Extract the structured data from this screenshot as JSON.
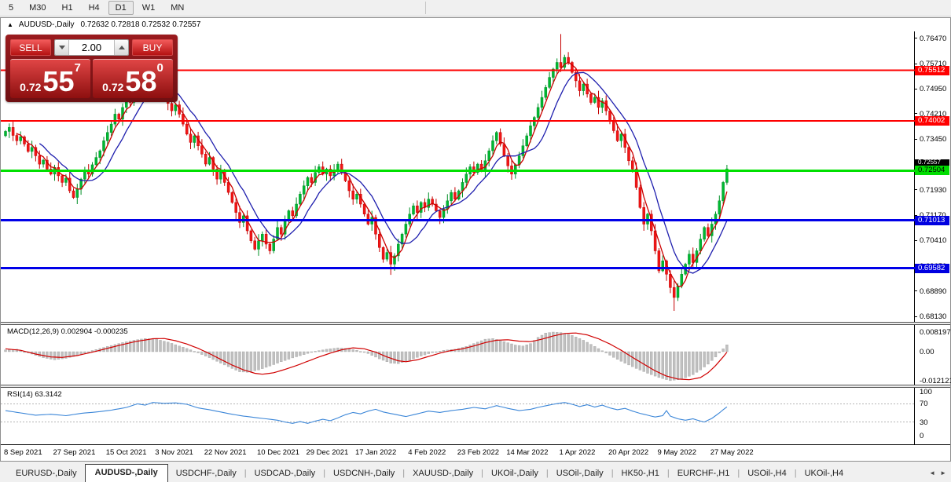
{
  "toolbar": {
    "timeframes": [
      "5",
      "M30",
      "H1",
      "H4",
      "D1",
      "W1",
      "MN"
    ],
    "active": "D1"
  },
  "chart": {
    "symbol_title": "AUDUSD-,Daily",
    "ohlc_text": "0.72632 0.72818 0.72532 0.72557",
    "collapse_icon": "▲"
  },
  "trade_panel": {
    "sell_label": "SELL",
    "buy_label": "BUY",
    "volume": "2.00",
    "sell_prefix": "0.72",
    "sell_big": "55",
    "sell_sup": "7",
    "sell_price": "0.72557",
    "buy_prefix": "0.72",
    "buy_big": "58",
    "buy_sup": "0",
    "buy_price": "0.72580"
  },
  "price_axis": {
    "ticks": [
      "0.76470",
      "0.75710",
      "0.74950",
      "0.74210",
      "0.73450",
      "0.72690",
      "0.71930",
      "0.71170",
      "0.70410",
      "0.69650",
      "0.68890",
      "0.68130"
    ],
    "bid_label": "0.72557",
    "levels": [
      {
        "price": 0.75512,
        "label": "0.75512",
        "bg": "#ff0000",
        "fg": "#ffffff"
      },
      {
        "price": 0.74002,
        "label": "0.74002",
        "bg": "#ff0000",
        "fg": "#ffffff"
      },
      {
        "price": 0.72504,
        "label": "0.72504",
        "bg": "#00dd00",
        "fg": "#000000"
      },
      {
        "price": 0.71013,
        "label": "0.71013",
        "bg": "#0000e0",
        "fg": "#ffffff"
      },
      {
        "price": 0.69582,
        "label": "0.69582",
        "bg": "#0000e0",
        "fg": "#ffffff"
      }
    ]
  },
  "date_axis": {
    "labels": [
      "8 Sep 2021",
      "27 Sep 2021",
      "15 Oct 2021",
      "3 Nov 2021",
      "22 Nov 2021",
      "10 Dec 2021",
      "29 Dec 2021",
      "17 Jan 2022",
      "4 Feb 2022",
      "23 Feb 2022",
      "14 Mar 2022",
      "1 Apr 2022",
      "20 Apr 2022",
      "9 May 2022",
      "27 May 2022"
    ],
    "bar_indices": [
      0,
      13,
      27,
      40,
      53,
      67,
      80,
      93,
      107,
      120,
      133,
      147,
      160,
      173,
      187
    ]
  },
  "macd_panel": {
    "label": "MACD(12,26,9) 0.002904 -0.000235",
    "axis_ticks": [
      0.008197,
      0.0,
      -0.012121
    ],
    "axis_tick_labels": [
      "0.008197",
      "0.00",
      "-0.012121"
    ]
  },
  "rsi_panel": {
    "label": "RSI(14) 63.3142",
    "axis_ticks": [
      100,
      70,
      30,
      0
    ],
    "axis_tick_labels": [
      "100",
      "70",
      "30",
      "0"
    ],
    "level_lines": [
      70,
      30
    ]
  },
  "tabs": {
    "items": [
      "EURUSD-,Daily",
      "AUDUSD-,Daily",
      "USDCHF-,Daily",
      "USDCAD-,Daily",
      "USDCNH-,Daily",
      "XAUUSD-,Daily",
      "UKOil-,Daily",
      "USOil-,Daily",
      "HK50-,H1",
      "EURCHF-,H1",
      "USOil-,H4",
      "UKOil-,H4"
    ],
    "active_index": 1,
    "scroll_left_icon": "◄",
    "scroll_right_icon": "►"
  },
  "colors": {
    "up_candle": "#00b832",
    "up_stroke": "#008f26",
    "down_candle": "#f21616",
    "down_stroke": "#c40000",
    "ma_fast": "#cc0000",
    "ma_slow": "#1f1fae",
    "resistance_line": "#fe0000",
    "pivot_line": "#00e000",
    "support_line": "#0000e8",
    "macd_hist": "#c0c0c0",
    "macd_signal": "#d00000",
    "rsi_line": "#3b86d8"
  },
  "chart_data": [
    {
      "type": "candlestick",
      "title": "AUDUSD-,Daily",
      "ylim": [
        0.6797,
        0.7668
      ],
      "x_tick_labels": [
        "8 Sep 2021",
        "27 Sep 2021",
        "15 Oct 2021",
        "3 Nov 2021",
        "22 Nov 2021",
        "10 Dec 2021",
        "29 Dec 2021",
        "17 Jan 2022",
        "4 Feb 2022",
        "23 Feb 2022",
        "14 Mar 2022",
        "1 Apr 2022",
        "20 Apr 2022",
        "9 May 2022",
        "27 May 2022"
      ],
      "first_open": 0.7355,
      "closes": [
        0.7368,
        0.738,
        0.7356,
        0.734,
        0.7352,
        0.733,
        0.7308,
        0.732,
        0.7295,
        0.727,
        0.7282,
        0.7255,
        0.724,
        0.726,
        0.7235,
        0.7215,
        0.7228,
        0.719,
        0.717,
        0.7195,
        0.7225,
        0.725,
        0.724,
        0.7268,
        0.729,
        0.731,
        0.734,
        0.7365,
        0.739,
        0.742,
        0.7405,
        0.744,
        0.747,
        0.7455,
        0.7485,
        0.751,
        0.753,
        0.7548,
        0.752,
        0.7495,
        0.7475,
        0.75,
        0.7478,
        0.7452,
        0.743,
        0.7448,
        0.742,
        0.739,
        0.736,
        0.7335,
        0.7355,
        0.7325,
        0.73,
        0.727,
        0.729,
        0.7255,
        0.7225,
        0.7248,
        0.7215,
        0.7185,
        0.7155,
        0.7125,
        0.7095,
        0.7115,
        0.707,
        0.704,
        0.7015,
        0.704,
        0.706,
        0.703,
        0.701,
        0.7045,
        0.708,
        0.706,
        0.71,
        0.713,
        0.7115,
        0.715,
        0.718,
        0.7205,
        0.723,
        0.7215,
        0.7245,
        0.7262,
        0.724,
        0.7255,
        0.7235,
        0.725,
        0.727,
        0.7245,
        0.722,
        0.719,
        0.7165,
        0.718,
        0.715,
        0.712,
        0.709,
        0.711,
        0.706,
        0.702,
        0.6985,
        0.7005,
        0.697,
        0.6995,
        0.703,
        0.706,
        0.709,
        0.712,
        0.7145,
        0.7125,
        0.7155,
        0.714,
        0.7165,
        0.715,
        0.713,
        0.711,
        0.7135,
        0.716,
        0.7185,
        0.7165,
        0.719,
        0.7215,
        0.724,
        0.7262,
        0.7245,
        0.727,
        0.725,
        0.728,
        0.731,
        0.734,
        0.7365,
        0.733,
        0.7295,
        0.7265,
        0.724,
        0.7268,
        0.7295,
        0.7325,
        0.7355,
        0.7385,
        0.741,
        0.744,
        0.747,
        0.75,
        0.753,
        0.7555,
        0.7575,
        0.756,
        0.759,
        0.7575,
        0.7545,
        0.752,
        0.749,
        0.751,
        0.748,
        0.7455,
        0.747,
        0.744,
        0.746,
        0.743,
        0.74,
        0.737,
        0.734,
        0.736,
        0.732,
        0.728,
        0.7255,
        0.72,
        0.714,
        0.709,
        0.712,
        0.707,
        0.701,
        0.695,
        0.698,
        0.694,
        0.69,
        0.687,
        0.6905,
        0.694,
        0.697,
        0.7,
        0.6975,
        0.701,
        0.7045,
        0.708,
        0.7055,
        0.709,
        0.712,
        0.716,
        0.7215,
        0.72557
      ],
      "high_overrides": {
        "37": 0.756,
        "147": 0.766
      },
      "low_overrides": {
        "102": 0.6938,
        "177": 0.683
      },
      "hlines": [
        {
          "price": 0.75512,
          "color": "#fe0000",
          "w": 2
        },
        {
          "price": 0.74002,
          "color": "#fe0000",
          "w": 2
        },
        {
          "price": 0.72504,
          "color": "#00e000",
          "w": 3
        },
        {
          "price": 0.71013,
          "color": "#0000e8",
          "w": 3
        },
        {
          "price": 0.69582,
          "color": "#0000e8",
          "w": 3
        }
      ],
      "ma_fast_window": 4,
      "ma_slow_window": 10
    },
    {
      "type": "bar",
      "title": "MACD(12,26,9)",
      "current_macd": 0.002904,
      "current_signal": -0.000235,
      "ylim": [
        -0.0138,
        0.0112
      ],
      "hist_anchors": [
        [
          0,
          0.0008
        ],
        [
          3,
          0.001
        ],
        [
          6,
          -0.0005
        ],
        [
          10,
          -0.0025
        ],
        [
          13,
          -0.0034
        ],
        [
          16,
          -0.0028
        ],
        [
          20,
          -0.0012
        ],
        [
          23,
          0.0005
        ],
        [
          27,
          0.0022
        ],
        [
          31,
          0.0038
        ],
        [
          34,
          0.0048
        ],
        [
          37,
          0.0055
        ],
        [
          40,
          0.0052
        ],
        [
          43,
          0.004
        ],
        [
          46,
          0.0024
        ],
        [
          49,
          0.0008
        ],
        [
          51,
          -0.0005
        ],
        [
          54,
          -0.0025
        ],
        [
          57,
          -0.0048
        ],
        [
          60,
          -0.007
        ],
        [
          62,
          -0.0084
        ],
        [
          64,
          -0.0086
        ],
        [
          67,
          -0.0076
        ],
        [
          70,
          -0.006
        ],
        [
          73,
          -0.0042
        ],
        [
          76,
          -0.0026
        ],
        [
          79,
          -0.0012
        ],
        [
          82,
          0.0002
        ],
        [
          85,
          0.001
        ],
        [
          88,
          0.0016
        ],
        [
          90,
          0.0014
        ],
        [
          93,
          0.0006
        ],
        [
          96,
          -0.0008
        ],
        [
          99,
          -0.003
        ],
        [
          102,
          -0.0048
        ],
        [
          104,
          -0.005
        ],
        [
          107,
          -0.0036
        ],
        [
          110,
          -0.0018
        ],
        [
          113,
          -0.0004
        ],
        [
          116,
          0.0006
        ],
        [
          119,
          0.001
        ],
        [
          122,
          0.0022
        ],
        [
          125,
          0.004
        ],
        [
          127,
          0.0052
        ],
        [
          129,
          0.0055
        ],
        [
          132,
          0.0042
        ],
        [
          135,
          0.0028
        ],
        [
          137,
          0.0024
        ],
        [
          139,
          0.0034
        ],
        [
          141,
          0.006
        ],
        [
          143,
          0.0078
        ],
        [
          145,
          0.0082
        ],
        [
          147,
          0.008
        ],
        [
          150,
          0.0068
        ],
        [
          153,
          0.0048
        ],
        [
          156,
          0.0022
        ],
        [
          158,
          0.0004
        ],
        [
          161,
          -0.0024
        ],
        [
          164,
          -0.0048
        ],
        [
          167,
          -0.007
        ],
        [
          170,
          -0.009
        ],
        [
          173,
          -0.0108
        ],
        [
          176,
          -0.0121
        ],
        [
          179,
          -0.0115
        ],
        [
          182,
          -0.0096
        ],
        [
          184,
          -0.0076
        ],
        [
          186,
          -0.0052
        ],
        [
          188,
          -0.0022
        ],
        [
          190,
          0.0012
        ],
        [
          191,
          0.0029
        ]
      ],
      "signal_anchors": [
        [
          0,
          0.0012
        ],
        [
          4,
          0.0006
        ],
        [
          8,
          -0.001
        ],
        [
          12,
          -0.0022
        ],
        [
          15,
          -0.0024
        ],
        [
          19,
          -0.0016
        ],
        [
          23,
          -0.0002
        ],
        [
          27,
          0.0014
        ],
        [
          31,
          0.003
        ],
        [
          35,
          0.0044
        ],
        [
          39,
          0.0054
        ],
        [
          42,
          0.0055
        ],
        [
          45,
          0.0046
        ],
        [
          48,
          0.0032
        ],
        [
          51,
          0.0014
        ],
        [
          54,
          -0.0008
        ],
        [
          57,
          -0.0032
        ],
        [
          60,
          -0.0056
        ],
        [
          63,
          -0.0076
        ],
        [
          66,
          -0.009
        ],
        [
          68,
          -0.0094
        ],
        [
          71,
          -0.0088
        ],
        [
          74,
          -0.0074
        ],
        [
          77,
          -0.0058
        ],
        [
          80,
          -0.004
        ],
        [
          83,
          -0.0022
        ],
        [
          86,
          -0.0006
        ],
        [
          89,
          0.0008
        ],
        [
          92,
          0.0016
        ],
        [
          95,
          0.0012
        ],
        [
          98,
          -0.0002
        ],
        [
          101,
          -0.0022
        ],
        [
          104,
          -0.0038
        ],
        [
          106,
          -0.0042
        ],
        [
          109,
          -0.0034
        ],
        [
          112,
          -0.002
        ],
        [
          115,
          -0.0006
        ],
        [
          118,
          0.0005
        ],
        [
          121,
          0.0012
        ],
        [
          124,
          0.0024
        ],
        [
          127,
          0.0038
        ],
        [
          130,
          0.0048
        ],
        [
          133,
          0.005
        ],
        [
          136,
          0.0044
        ],
        [
          139,
          0.0042
        ],
        [
          142,
          0.0052
        ],
        [
          145,
          0.0066
        ],
        [
          148,
          0.0076
        ],
        [
          151,
          0.0078
        ],
        [
          154,
          0.007
        ],
        [
          157,
          0.0054
        ],
        [
          160,
          0.0032
        ],
        [
          163,
          0.0006
        ],
        [
          166,
          -0.0024
        ],
        [
          169,
          -0.0052
        ],
        [
          172,
          -0.008
        ],
        [
          175,
          -0.0102
        ],
        [
          178,
          -0.0114
        ],
        [
          181,
          -0.0117
        ],
        [
          184,
          -0.0108
        ],
        [
          186,
          -0.0088
        ],
        [
          188,
          -0.0058
        ],
        [
          190,
          -0.0022
        ],
        [
          191,
          -0.0002
        ]
      ]
    },
    {
      "type": "line",
      "title": "RSI(14)",
      "current": 63.3142,
      "ylim": [
        0,
        100
      ],
      "levels": [
        70,
        30
      ],
      "anchors": [
        [
          0,
          55
        ],
        [
          4,
          50
        ],
        [
          8,
          45
        ],
        [
          12,
          47
        ],
        [
          16,
          44
        ],
        [
          20,
          49
        ],
        [
          24,
          52
        ],
        [
          28,
          56
        ],
        [
          32,
          62
        ],
        [
          35,
          70
        ],
        [
          37,
          67
        ],
        [
          39,
          73
        ],
        [
          42,
          71
        ],
        [
          45,
          72
        ],
        [
          48,
          69
        ],
        [
          51,
          61
        ],
        [
          54,
          57
        ],
        [
          57,
          52
        ],
        [
          60,
          47
        ],
        [
          63,
          43
        ],
        [
          66,
          40
        ],
        [
          69,
          37
        ],
        [
          72,
          34
        ],
        [
          74,
          30
        ],
        [
          76,
          27
        ],
        [
          78,
          31
        ],
        [
          80,
          27
        ],
        [
          82,
          32
        ],
        [
          84,
          36
        ],
        [
          86,
          33
        ],
        [
          88,
          39
        ],
        [
          90,
          46
        ],
        [
          92,
          51
        ],
        [
          94,
          48
        ],
        [
          96,
          54
        ],
        [
          98,
          58
        ],
        [
          100,
          52
        ],
        [
          103,
          47
        ],
        [
          106,
          42
        ],
        [
          109,
          48
        ],
        [
          112,
          54
        ],
        [
          115,
          51
        ],
        [
          118,
          55
        ],
        [
          121,
          58
        ],
        [
          124,
          62
        ],
        [
          127,
          59
        ],
        [
          130,
          66
        ],
        [
          133,
          60
        ],
        [
          136,
          55
        ],
        [
          139,
          58
        ],
        [
          142,
          64
        ],
        [
          145,
          69
        ],
        [
          148,
          73
        ],
        [
          150,
          69
        ],
        [
          152,
          64
        ],
        [
          154,
          68
        ],
        [
          156,
          63
        ],
        [
          158,
          67
        ],
        [
          160,
          61
        ],
        [
          162,
          57
        ],
        [
          164,
          60
        ],
        [
          166,
          54
        ],
        [
          168,
          49
        ],
        [
          170,
          45
        ],
        [
          172,
          41
        ],
        [
          174,
          44
        ],
        [
          175,
          55
        ],
        [
          176,
          43
        ],
        [
          178,
          37
        ],
        [
          180,
          34
        ],
        [
          182,
          37
        ],
        [
          184,
          32
        ],
        [
          185,
          30
        ],
        [
          186,
          34
        ],
        [
          187,
          38
        ],
        [
          188,
          44
        ],
        [
          189,
          50
        ],
        [
          190,
          57
        ],
        [
          191,
          63.3
        ]
      ]
    }
  ]
}
